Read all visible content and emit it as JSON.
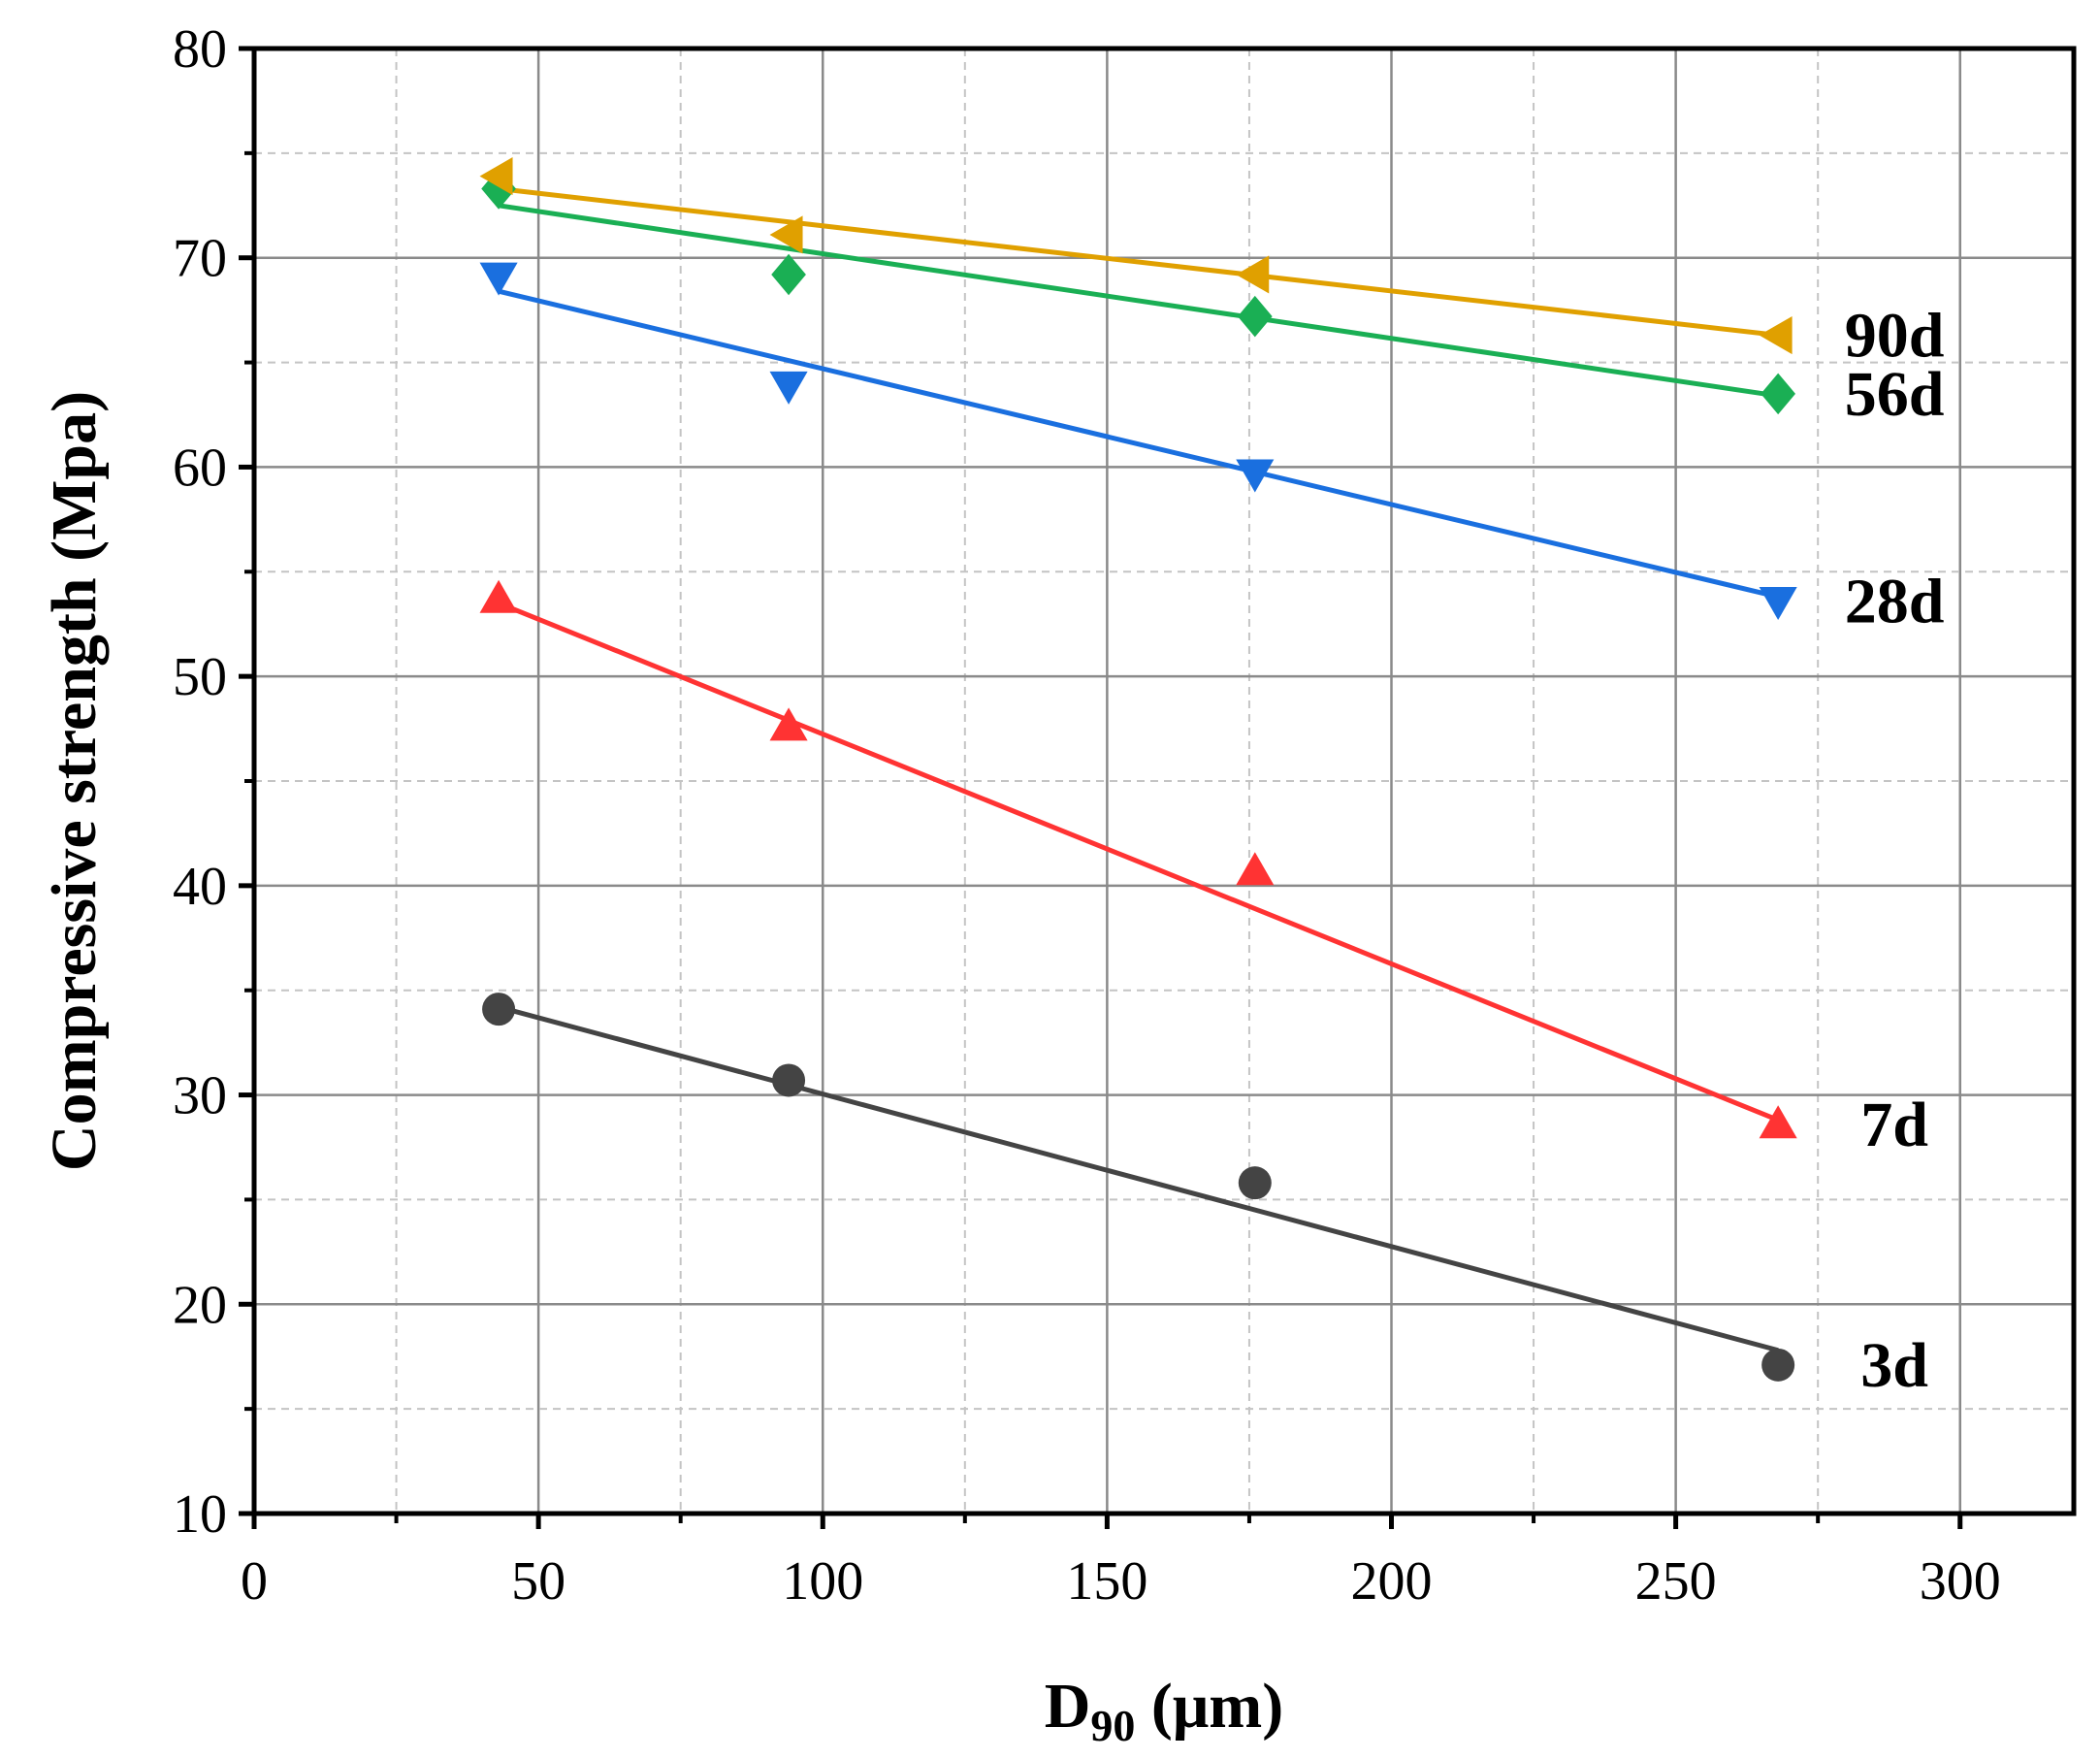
{
  "chart_data": {
    "type": "scatter",
    "title": "",
    "xlabel": "D",
    "xlabel_sub": "90",
    "xlabel_unit": " (μm)",
    "ylabel": "Compressive strength (Mpa)",
    "xlim": [
      0,
      320
    ],
    "ylim": [
      10,
      80
    ],
    "xticks": [
      0,
      50,
      100,
      150,
      200,
      250,
      300
    ],
    "yticks": [
      10,
      20,
      30,
      40,
      50,
      60,
      70,
      80
    ],
    "grid": true,
    "x": [
      43,
      94,
      176,
      268
    ],
    "series": [
      {
        "name": "3d",
        "marker": "circle",
        "color": "#444444",
        "values": [
          34.1,
          30.7,
          25.8,
          17.1
        ],
        "fit": [
          34.2,
          17.8
        ]
      },
      {
        "name": "7d",
        "marker": "triangle-up",
        "color": "#ff3333",
        "values": [
          53.7,
          47.6,
          40.7,
          28.6
        ],
        "fit": [
          53.5,
          28.8
        ]
      },
      {
        "name": "28d",
        "marker": "triangle-down",
        "color": "#1a6fdf",
        "values": [
          69.1,
          63.9,
          59.7,
          53.6
        ],
        "fit": [
          68.4,
          53.8
        ]
      },
      {
        "name": "56d",
        "marker": "diamond",
        "color": "#1aaf54",
        "values": [
          73.3,
          69.2,
          67.2,
          63.5
        ],
        "fit": [
          72.5,
          63.4
        ]
      },
      {
        "name": "90d",
        "marker": "triangle-left",
        "color": "#e0a000",
        "values": [
          73.9,
          71.1,
          69.2,
          66.3
        ],
        "fit": [
          73.3,
          66.3
        ]
      }
    ]
  }
}
